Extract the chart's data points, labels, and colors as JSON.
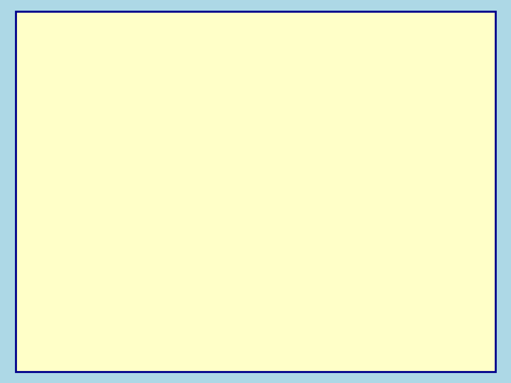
{
  "bg_outer": "#add8e6",
  "bg_inner": "#ffffc8",
  "border_color": "#00008b",
  "text_color": "#00008b",
  "red_color": "#cc0000",
  "figsize": [
    7.2,
    5.4
  ],
  "dpi": 100
}
